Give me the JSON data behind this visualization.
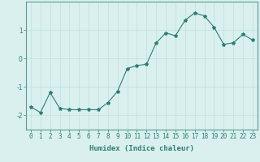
{
  "x": [
    0,
    1,
    2,
    3,
    4,
    5,
    6,
    7,
    8,
    9,
    10,
    11,
    12,
    13,
    14,
    15,
    16,
    17,
    18,
    19,
    20,
    21,
    22,
    23
  ],
  "y": [
    -1.7,
    -1.9,
    -1.2,
    -1.75,
    -1.8,
    -1.8,
    -1.8,
    -1.8,
    -1.55,
    -1.15,
    -0.35,
    -0.25,
    -0.2,
    0.55,
    0.9,
    0.8,
    1.35,
    1.6,
    1.5,
    1.1,
    0.5,
    0.55,
    0.85,
    0.65
  ],
  "line_color": "#2e7d72",
  "marker": "*",
  "marker_size": 3,
  "bg_color": "#d9f0ef",
  "grid_color": "#c0dede",
  "xlabel": "Humidex (Indice chaleur)",
  "ylim": [
    -2.5,
    2.0
  ],
  "xlim": [
    -0.5,
    23.5
  ],
  "yticks": [
    -2,
    -1,
    0,
    1
  ],
  "xticks": [
    0,
    1,
    2,
    3,
    4,
    5,
    6,
    7,
    8,
    9,
    10,
    11,
    12,
    13,
    14,
    15,
    16,
    17,
    18,
    19,
    20,
    21,
    22,
    23
  ],
  "tick_color": "#2e7d72",
  "spine_color": "#5a9a90",
  "label_fontsize": 6.5,
  "tick_fontsize": 5.5,
  "linewidth": 0.8
}
